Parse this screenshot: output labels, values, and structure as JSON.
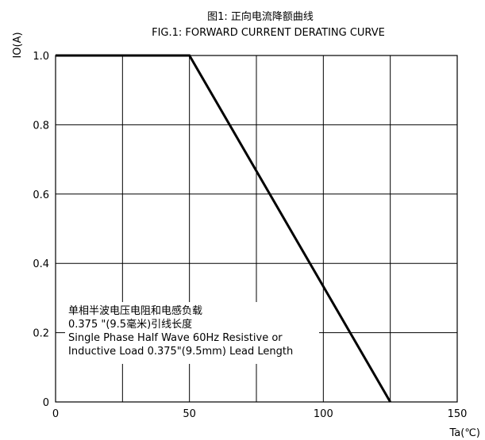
{
  "chart_data": {
    "type": "line",
    "title": "图1:  正向电流降额曲线",
    "subtitle": "FIG.1: FORWARD CURRENT  DERATING CURVE",
    "xlabel": "Ta(℃)",
    "ylabel": "IO(A)",
    "xlim": [
      0,
      150
    ],
    "ylim": [
      0,
      1.0
    ],
    "x_ticks": [
      {
        "value": 0,
        "label": "0"
      },
      {
        "value": 50,
        "label": "50"
      },
      {
        "value": 100,
        "label": "100"
      },
      {
        "value": 150,
        "label": "150"
      }
    ],
    "y_ticks": [
      {
        "value": 0,
        "label": "0"
      },
      {
        "value": 0.2,
        "label": "0.2"
      },
      {
        "value": 0.4,
        "label": "0.4"
      },
      {
        "value": 0.6,
        "label": "0.6"
      },
      {
        "value": 0.8,
        "label": "0.8"
      },
      {
        "value": 1.0,
        "label": "1.0"
      }
    ],
    "grid": true,
    "x_grid_step": 25,
    "series": [
      {
        "x": [
          0,
          50,
          125
        ],
        "y": [
          1.0,
          1.0,
          0
        ],
        "color": "#000000"
      }
    ],
    "annotation_lines": [
      "单相半波电压电阻和电感负载",
      "0.375 \"(9.5毫米)引线长度",
      "Single Phase Half Wave 60Hz Resistive or",
      "Inductive Load 0.375\"(9.5mm) Lead Length"
    ]
  }
}
